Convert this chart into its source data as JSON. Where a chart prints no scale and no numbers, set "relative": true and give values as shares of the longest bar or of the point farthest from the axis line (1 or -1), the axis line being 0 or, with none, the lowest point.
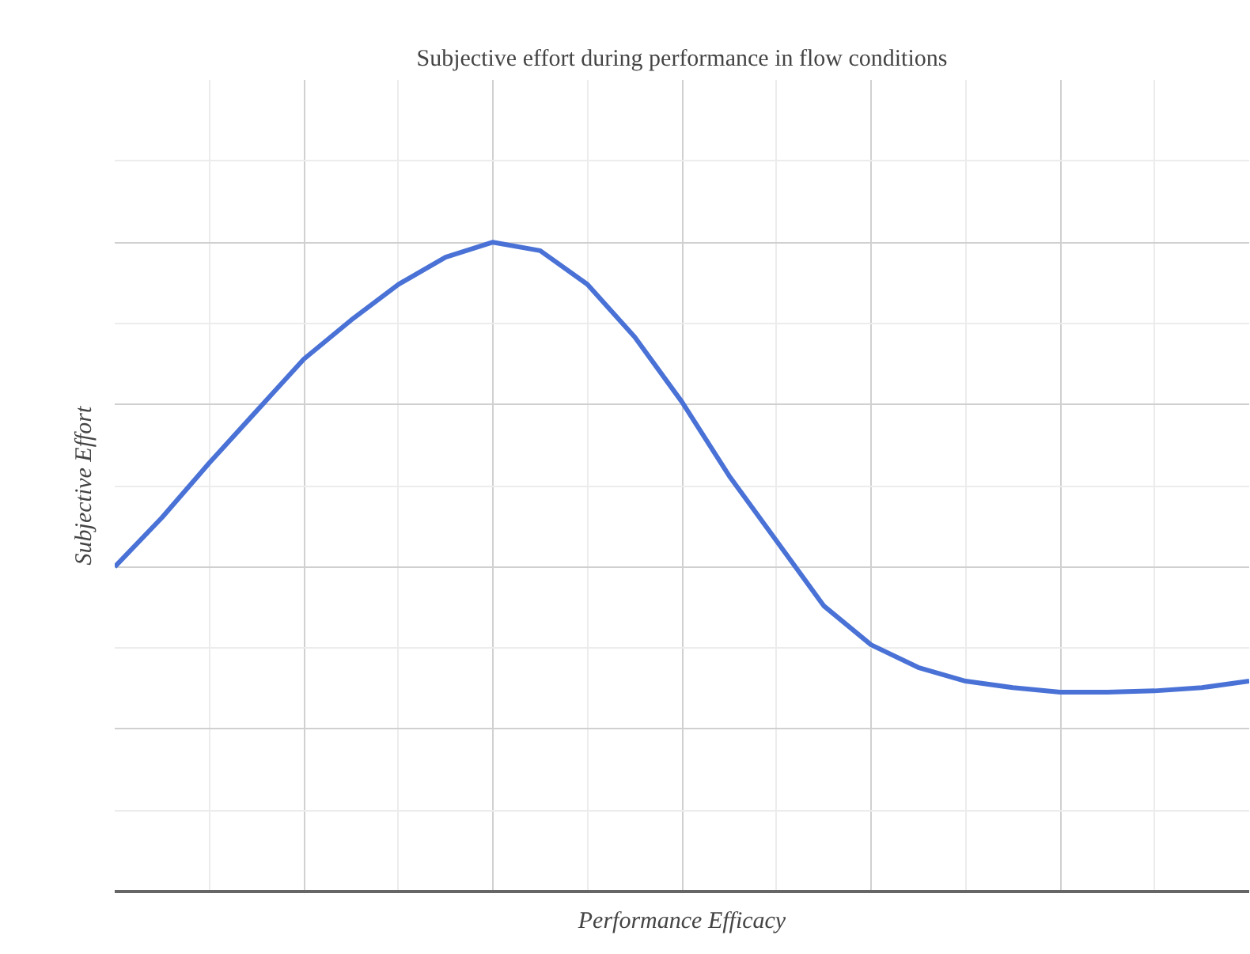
{
  "chart_data": {
    "type": "line",
    "title": "Subjective effort during performance in flow conditions",
    "xlabel": "Performance Efficacy",
    "ylabel": "Subjective Effort",
    "relative": true,
    "grid": true,
    "categories": [
      null,
      null,
      null,
      null,
      null,
      null,
      null,
      null,
      null,
      null,
      null,
      null,
      null,
      null,
      null,
      null,
      null,
      null,
      null,
      null,
      null,
      null,
      null,
      null,
      null
    ],
    "series": [
      {
        "color": "#4a72d6",
        "values": [
          0.5,
          0.576,
          0.66,
          0.74,
          0.82,
          0.88,
          0.935,
          0.977,
          1.0,
          0.987,
          0.935,
          0.854,
          0.754,
          0.64,
          0.54,
          0.44,
          0.38,
          0.345,
          0.324,
          0.314,
          0.307,
          0.307,
          0.309,
          0.314,
          0.324
        ]
      }
    ]
  }
}
